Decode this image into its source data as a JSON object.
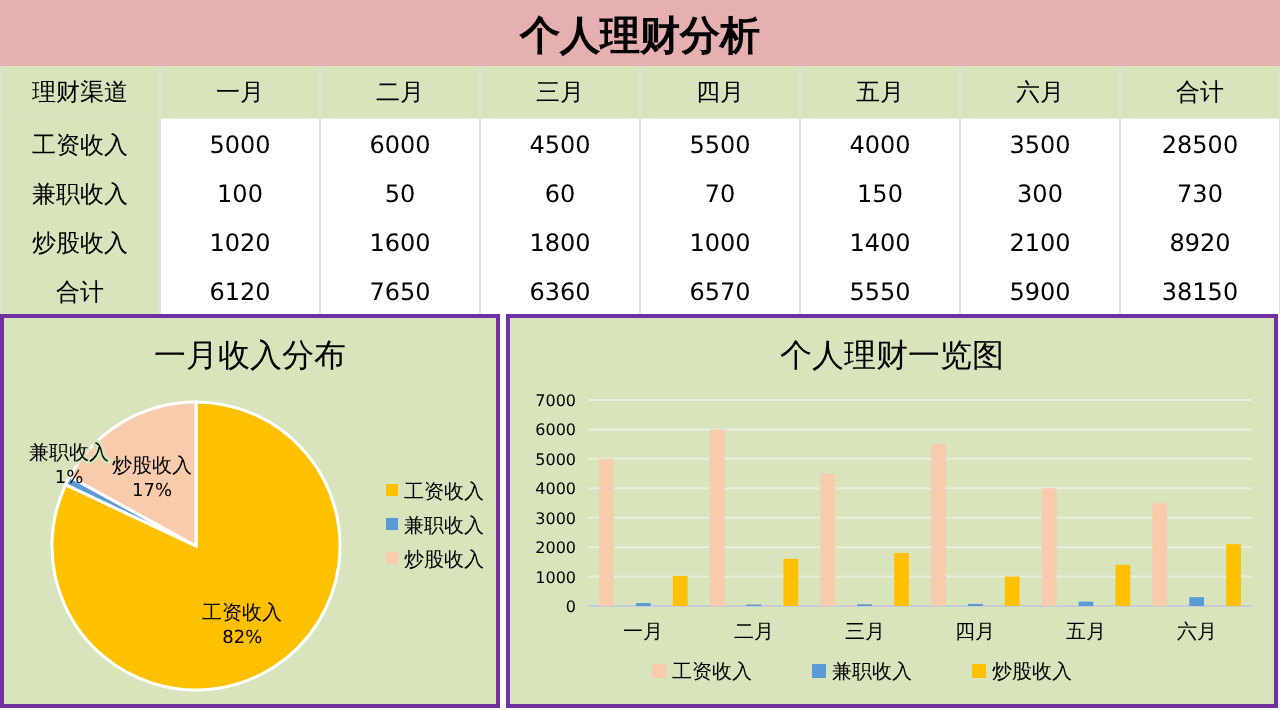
{
  "chart_data": [
    {
      "type": "other",
      "title": "个人理财分析",
      "legend_title": "理财渠道",
      "data_labels": true,
      "categories": [
        "一月",
        "二月",
        "三月",
        "四月",
        "五月",
        "六月",
        "合计"
      ],
      "series": [
        {
          "name": "工资收入",
          "values": [
            5000,
            6000,
            4500,
            5500,
            4000,
            3500,
            28500
          ]
        },
        {
          "name": "兼职收入",
          "values": [
            100,
            50,
            60,
            70,
            150,
            300,
            730
          ]
        },
        {
          "name": "炒股收入",
          "values": [
            1020,
            1600,
            1800,
            1000,
            1400,
            2100,
            8920
          ]
        },
        {
          "name": "合计",
          "values": [
            6120,
            7650,
            6360,
            6570,
            5550,
            5900,
            38150
          ]
        }
      ]
    },
    {
      "type": "pie",
      "title": "一月收入分布",
      "categories": [
        "工资收入",
        "兼职收入",
        "炒股收入"
      ],
      "values": [
        82,
        1,
        17
      ],
      "value_labels": [
        "82%",
        "1%",
        "17%"
      ],
      "colors": [
        "#ffc000",
        "#5b9bd5",
        "#f8cbad"
      ],
      "legend": "right"
    },
    {
      "type": "bar",
      "title": "个人理财一览图",
      "categories": [
        "一月",
        "二月",
        "三月",
        "四月",
        "五月",
        "六月"
      ],
      "series": [
        {
          "name": "工资收入",
          "color": "#f8cbad",
          "values": [
            5000,
            6000,
            4500,
            5500,
            4000,
            3500
          ]
        },
        {
          "name": "兼职收入",
          "color": "#5b9bd5",
          "values": [
            100,
            50,
            60,
            70,
            150,
            300
          ]
        },
        {
          "name": "炒股收入",
          "color": "#ffc000",
          "values": [
            1020,
            1600,
            1800,
            1000,
            1400,
            2100
          ]
        }
      ],
      "ylim": [
        0,
        7000
      ],
      "yticks": [
        0,
        1000,
        2000,
        3000,
        4000,
        5000,
        6000,
        7000
      ],
      "grid": "y",
      "legend": "bottom"
    }
  ]
}
